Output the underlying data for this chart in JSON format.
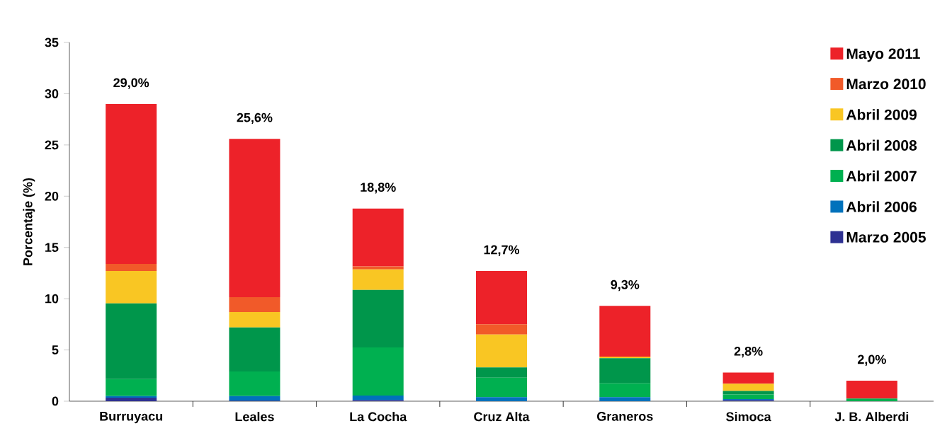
{
  "chart_data": {
    "type": "bar",
    "stacked": true,
    "ylabel": "Porcentaje (%)",
    "categories": [
      "Burruyacu",
      "Leales",
      "La Cocha",
      "Cruz Alta",
      "Graneros",
      "Simoca",
      "J. B. Alberdi"
    ],
    "series": [
      {
        "name": "Marzo 2005",
        "color": "#2e3192",
        "values": [
          0.35,
          0.05,
          0.1,
          0,
          0,
          0.1,
          0
        ]
      },
      {
        "name": "Abril 2006",
        "color": "#0072bc",
        "values": [
          0.15,
          0.45,
          0.45,
          0.4,
          0.4,
          0.1,
          0
        ]
      },
      {
        "name": "Abril 2007",
        "color": "#00b050",
        "values": [
          1.65,
          2.4,
          4.7,
          1.9,
          1.35,
          0.45,
          0.25
        ]
      },
      {
        "name": "Abril 2008",
        "color": "#00964b",
        "values": [
          7.4,
          4.3,
          5.6,
          1.0,
          2.45,
          0.35,
          0
        ]
      },
      {
        "name": "Abril 2009",
        "color": "#f9c623",
        "values": [
          3.15,
          1.5,
          2.0,
          3.2,
          0.15,
          0.7,
          0
        ]
      },
      {
        "name": "Marzo 2010",
        "color": "#f15a29",
        "values": [
          0.7,
          1.45,
          0.3,
          1.0,
          0,
          0,
          0
        ]
      },
      {
        "name": "Mayo 2011",
        "color": "#ed2229",
        "values": [
          15.6,
          15.45,
          5.65,
          5.2,
          4.95,
          1.1,
          1.75
        ]
      }
    ],
    "totals": [
      "29,0%",
      "25,6%",
      "18,8%",
      "12,7%",
      "9,3%",
      "2,8%",
      "2,0%"
    ],
    "ylim": [
      0,
      35
    ],
    "yticks": [
      0,
      5,
      10,
      15,
      20,
      25,
      30,
      35
    ],
    "grid": false,
    "legend": "top right"
  }
}
